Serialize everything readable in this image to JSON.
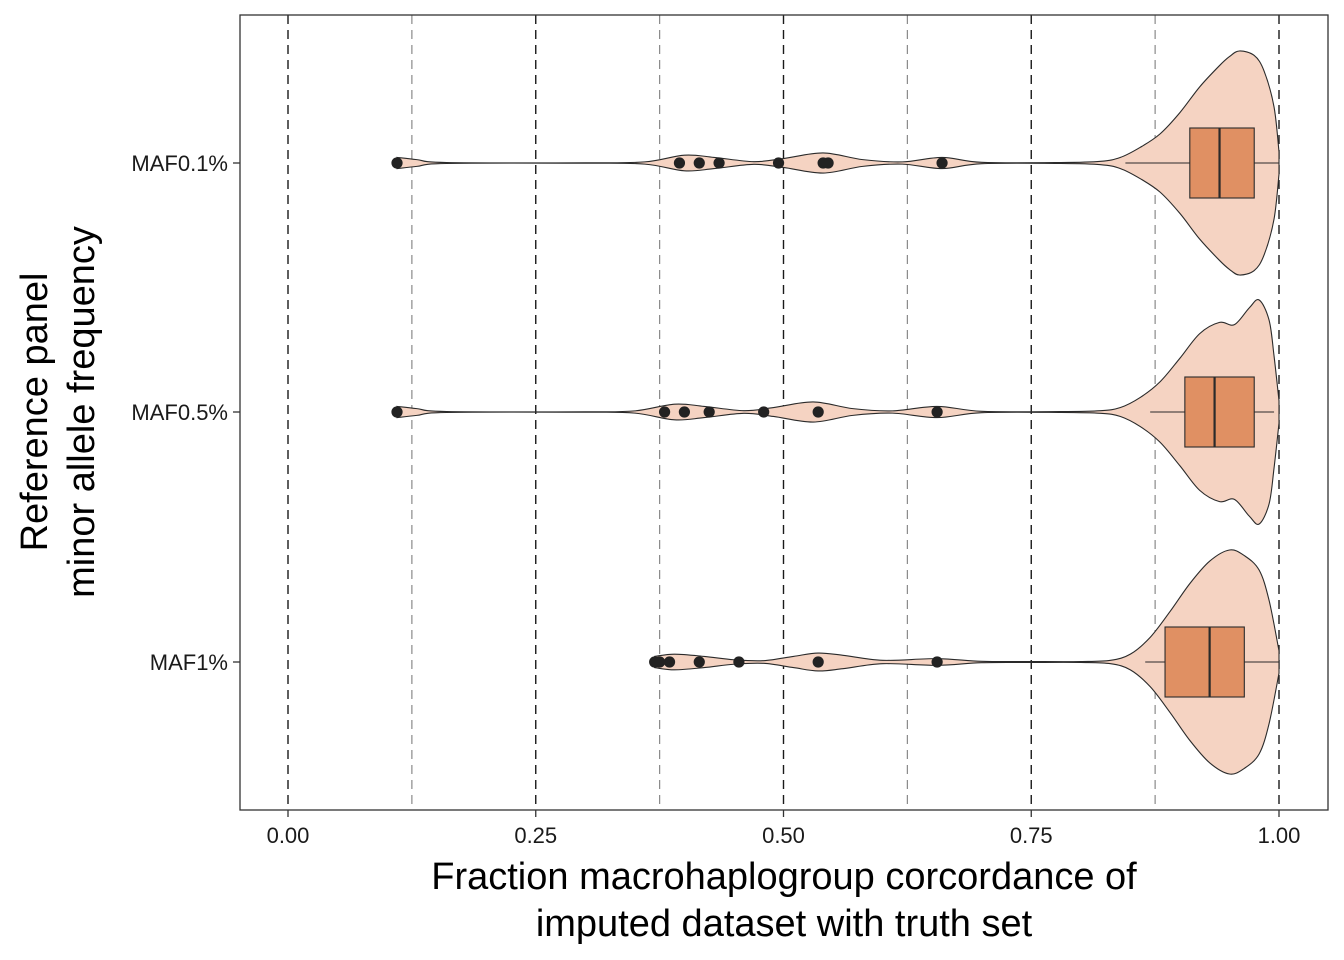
{
  "chart_data": {
    "type": "violin",
    "xlabel_line1": "Fraction macrohaplogroup corcordance of",
    "xlabel_line2": "imputed dataset with truth set",
    "ylabel_line1": "Reference panel",
    "ylabel_line2": "minor allele frequency",
    "xlim": [
      -0.05,
      1.05
    ],
    "x_ticks": [
      {
        "value": 0.0,
        "label": "0.00"
      },
      {
        "value": 0.25,
        "label": "0.25"
      },
      {
        "value": 0.5,
        "label": "0.50"
      },
      {
        "value": 0.75,
        "label": "0.75"
      },
      {
        "value": 1.0,
        "label": "1.00"
      }
    ],
    "major_reference_lines": [
      0.0,
      0.25,
      0.5,
      0.75,
      1.0
    ],
    "minor_reference_lines": [
      0.125,
      0.375,
      0.625,
      0.875
    ],
    "colors": {
      "violin_fill": "#f5d3c2",
      "box_fill": "#e09063",
      "outline": "#2a2a2a",
      "points": "#222222"
    },
    "categories": [
      "MAF0.1%",
      "MAF0.5%",
      "MAF1%"
    ],
    "series": [
      {
        "category": "MAF0.1%",
        "box": {
          "whisker_low": 0.845,
          "q1": 0.91,
          "median": 0.94,
          "q3": 0.975,
          "whisker_high": 1.0
        },
        "outliers": [
          0.11,
          0.395,
          0.415,
          0.435,
          0.495,
          0.54,
          0.545,
          0.66
        ],
        "density": [
          [
            0.11,
            0.05
          ],
          [
            0.13,
            0.03
          ],
          [
            0.16,
            0.004
          ],
          [
            0.3,
            0.002
          ],
          [
            0.36,
            0.01
          ],
          [
            0.4,
            0.07
          ],
          [
            0.43,
            0.05
          ],
          [
            0.47,
            0.012
          ],
          [
            0.5,
            0.04
          ],
          [
            0.54,
            0.09
          ],
          [
            0.58,
            0.03
          ],
          [
            0.62,
            0.01
          ],
          [
            0.66,
            0.05
          ],
          [
            0.7,
            0.006
          ],
          [
            0.78,
            0.004
          ],
          [
            0.82,
            0.015
          ],
          [
            0.84,
            0.05
          ],
          [
            0.86,
            0.14
          ],
          [
            0.88,
            0.26
          ],
          [
            0.9,
            0.45
          ],
          [
            0.92,
            0.68
          ],
          [
            0.94,
            0.87
          ],
          [
            0.95,
            0.95
          ],
          [
            0.96,
            1.0
          ],
          [
            0.975,
            0.96
          ],
          [
            0.985,
            0.82
          ],
          [
            0.995,
            0.5
          ],
          [
            1.0,
            0.1
          ]
        ]
      },
      {
        "category": "MAF0.5%",
        "box": {
          "whisker_low": 0.87,
          "q1": 0.905,
          "median": 0.935,
          "q3": 0.975,
          "whisker_high": 0.995
        },
        "outliers": [
          0.11,
          0.38,
          0.4,
          0.425,
          0.48,
          0.535,
          0.655
        ],
        "density": [
          [
            0.11,
            0.05
          ],
          [
            0.13,
            0.03
          ],
          [
            0.16,
            0.004
          ],
          [
            0.3,
            0.002
          ],
          [
            0.35,
            0.01
          ],
          [
            0.39,
            0.07
          ],
          [
            0.42,
            0.05
          ],
          [
            0.46,
            0.012
          ],
          [
            0.49,
            0.04
          ],
          [
            0.53,
            0.09
          ],
          [
            0.57,
            0.03
          ],
          [
            0.61,
            0.01
          ],
          [
            0.655,
            0.05
          ],
          [
            0.7,
            0.006
          ],
          [
            0.78,
            0.004
          ],
          [
            0.82,
            0.012
          ],
          [
            0.84,
            0.04
          ],
          [
            0.86,
            0.13
          ],
          [
            0.88,
            0.27
          ],
          [
            0.9,
            0.48
          ],
          [
            0.92,
            0.7
          ],
          [
            0.94,
            0.8
          ],
          [
            0.955,
            0.78
          ],
          [
            0.97,
            0.93
          ],
          [
            0.98,
            1.0
          ],
          [
            0.99,
            0.82
          ],
          [
            0.995,
            0.5
          ],
          [
            1.0,
            0.1
          ]
        ]
      },
      {
        "category": "MAF1%",
        "box": {
          "whisker_low": 0.865,
          "q1": 0.885,
          "median": 0.93,
          "q3": 0.965,
          "whisker_high": 1.0
        },
        "outliers": [
          0.37,
          0.375,
          0.385,
          0.415,
          0.455,
          0.535,
          0.655
        ],
        "density": [
          [
            0.37,
            0.05
          ],
          [
            0.39,
            0.07
          ],
          [
            0.42,
            0.05
          ],
          [
            0.45,
            0.02
          ],
          [
            0.48,
            0.012
          ],
          [
            0.51,
            0.05
          ],
          [
            0.535,
            0.08
          ],
          [
            0.56,
            0.06
          ],
          [
            0.6,
            0.015
          ],
          [
            0.655,
            0.03
          ],
          [
            0.7,
            0.006
          ],
          [
            0.75,
            0.004
          ],
          [
            0.8,
            0.004
          ],
          [
            0.83,
            0.015
          ],
          [
            0.85,
            0.07
          ],
          [
            0.87,
            0.22
          ],
          [
            0.89,
            0.45
          ],
          [
            0.91,
            0.7
          ],
          [
            0.93,
            0.9
          ],
          [
            0.95,
            1.0
          ],
          [
            0.965,
            0.95
          ],
          [
            0.98,
            0.82
          ],
          [
            0.99,
            0.55
          ],
          [
            1.0,
            0.1
          ]
        ]
      }
    ]
  }
}
